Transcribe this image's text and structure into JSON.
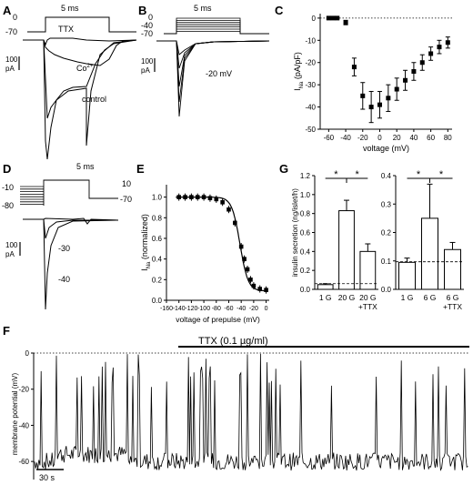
{
  "panel_letters": {
    "A": "A",
    "B": "B",
    "C": "C",
    "D": "D",
    "E": "E",
    "F": "F",
    "G": "G"
  },
  "colors": {
    "ink": "#000000",
    "background": "#ffffff"
  },
  "panelA": {
    "protocol": {
      "duration": "5 ms",
      "v_hold": "-70",
      "v_step": "0"
    },
    "labels": {
      "ttx": "TTX",
      "co": "Co",
      "co_sup": "2+",
      "control": "control"
    },
    "scale": {
      "value": "100",
      "unit": "pA"
    }
  },
  "panelB": {
    "protocol": {
      "duration": "5 ms",
      "v_top": "0",
      "v_mid": "-40",
      "v_hold": "-70"
    },
    "labels": {
      "trace": "-20 mV"
    },
    "scale": {
      "value": "100",
      "unit": "pA"
    }
  },
  "panelD": {
    "protocol": {
      "duration": "5 ms",
      "v_pre_top": "-10",
      "v_pre_bottom": "-80",
      "v_test": "10",
      "v_hold": "-70"
    },
    "labels": {
      "t1": "-30",
      "t2": "-40"
    },
    "scale": {
      "value": "100",
      "unit": "pA"
    }
  },
  "panelF": {
    "drug_label": "TTX (0.1 µg/ml)",
    "ylabel": "membrane potential (mV)",
    "yticks": [
      "0",
      "-20",
      "-40",
      "-60"
    ],
    "time_scale": "30 s"
  },
  "chart_data": [
    {
      "id": "C",
      "type": "scatter",
      "xlabel": "voltage (mV)",
      "ylabel_main": "I",
      "ylabel_sub": "Na",
      "ylabel_rest": " (pA/pF)",
      "xlim": [
        -70,
        85
      ],
      "ylim": [
        -50,
        2
      ],
      "xticks": [
        -60,
        -40,
        -20,
        0,
        20,
        40,
        60,
        80
      ],
      "yticks": [
        0,
        -10,
        -20,
        -30,
        -40,
        -50
      ],
      "zero_line": "dotted",
      "x": [
        -60,
        -55,
        -50,
        -40,
        -30,
        -20,
        -10,
        0,
        10,
        20,
        30,
        40,
        50,
        60,
        70,
        80
      ],
      "y": [
        0,
        0,
        0,
        -2,
        -22,
        -35,
        -40,
        -39,
        -36,
        -32,
        -28,
        -24,
        -20,
        -16,
        -13,
        -11
      ],
      "err": [
        0.4,
        0.4,
        0.4,
        1,
        4,
        6,
        7,
        6,
        6,
        5,
        4.5,
        4,
        3.5,
        3,
        3,
        2.5
      ]
    },
    {
      "id": "E",
      "type": "scatter",
      "xlabel": "voltage of prepulse (mV)",
      "ylabel_main": "I",
      "ylabel_sub": "Na",
      "ylabel_rest": " (normalized)",
      "xlim": [
        -160,
        5
      ],
      "ylim": [
        0,
        1.12
      ],
      "xticks": [
        -160,
        -140,
        -120,
        -100,
        -80,
        -60,
        -40,
        -20,
        0
      ],
      "yticks": [
        0.0,
        0.2,
        0.4,
        0.6,
        0.8,
        1.0
      ],
      "ytick_labels": [
        "0.0",
        "0.2",
        "0.4",
        "0.6",
        "0.8",
        "1.0"
      ],
      "x": [
        -140,
        -130,
        -120,
        -110,
        -100,
        -90,
        -80,
        -70,
        -60,
        -50,
        -40,
        -35,
        -30,
        -25,
        -20,
        -10,
        0
      ],
      "y": [
        1.0,
        1.0,
        1.0,
        1.0,
        1.0,
        0.99,
        0.98,
        0.95,
        0.88,
        0.75,
        0.52,
        0.4,
        0.3,
        0.2,
        0.14,
        0.11,
        0.1
      ],
      "fit": {
        "v_half": -42,
        "slope": 6.5,
        "bottom": 0.09
      }
    },
    {
      "id": "G1",
      "type": "bar",
      "ylabel": "insulin secretion (ng/islet/h)",
      "categories": [
        "1 G",
        "20 G",
        "20 G\n+TTX"
      ],
      "values": [
        0.05,
        0.83,
        0.4
      ],
      "err": [
        0.01,
        0.11,
        0.08
      ],
      "ylim": [
        0,
        1.2
      ],
      "yticks": [
        0.0,
        0.2,
        0.4,
        0.6,
        0.8,
        1.0,
        1.2
      ],
      "ytick_labels": [
        "0.0",
        "0.2",
        "0.4",
        "0.6",
        "0.8",
        "1.0",
        "1.2"
      ],
      "dashed_line": 0.06,
      "significance": [
        "*",
        "*"
      ]
    },
    {
      "id": "G2",
      "type": "bar",
      "categories": [
        "1 G",
        "6 G",
        "6 G\n+TTX"
      ],
      "values": [
        0.095,
        0.25,
        0.14
      ],
      "err": [
        0.015,
        0.12,
        0.025
      ],
      "ylim": [
        0,
        0.4
      ],
      "yticks": [
        0.0,
        0.1,
        0.2,
        0.3,
        0.4
      ],
      "ytick_labels": [
        "0.0",
        "0.1",
        "0.2",
        "0.3",
        "0.4"
      ],
      "dashed_line": 0.097,
      "significance": [
        "*",
        "*"
      ]
    }
  ]
}
